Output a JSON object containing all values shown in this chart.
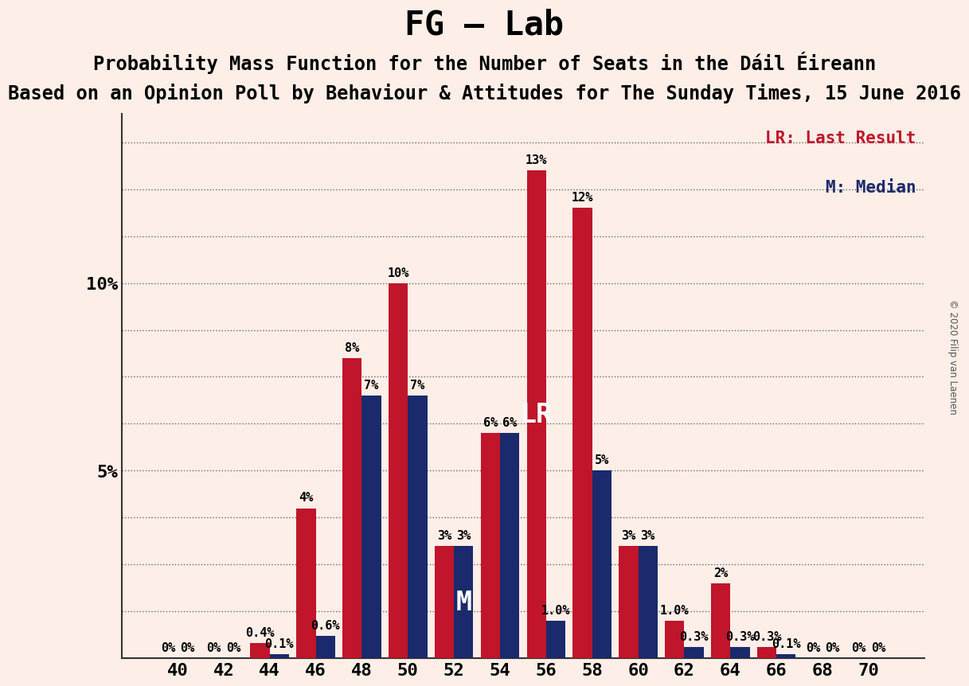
{
  "title": "FG – Lab",
  "subtitle1": "Probability Mass Function for the Number of Seats in the Dáil Éireann",
  "subtitle2": "Based on an Opinion Poll by Behaviour & Attitudes for The Sunday Times, 15 June 2016",
  "copyright": "© 2020 Filip van Laenen",
  "seats": [
    40,
    42,
    44,
    46,
    48,
    50,
    52,
    54,
    56,
    58,
    60,
    62,
    64,
    66,
    68,
    70
  ],
  "navy_values": [
    0.0,
    0.0,
    0.1,
    0.6,
    7.0,
    7.0,
    3.0,
    6.0,
    1.0,
    5.0,
    3.0,
    0.3,
    0.3,
    0.1,
    0.0,
    0.0
  ],
  "red_values": [
    0.0,
    0.0,
    0.4,
    4.0,
    8.0,
    10.0,
    3.0,
    6.0,
    13.0,
    12.0,
    3.0,
    1.0,
    2.0,
    0.3,
    0.0,
    0.0
  ],
  "navy_labels": [
    "0%",
    "0%",
    "0.1%",
    "0.6%",
    "7%",
    "7%",
    "3%",
    "6%",
    "1.0%",
    "5%",
    "3%",
    "0.3%",
    "0.3%",
    "0.1%",
    "0%",
    "0%"
  ],
  "red_labels": [
    "0%",
    "0%",
    "0.4%",
    "4%",
    "8%",
    "10%",
    "3%",
    "6%",
    "13%",
    "12%",
    "3%",
    "1.0%",
    "2%",
    "0.3%",
    "0%",
    "0%"
  ],
  "navy_color": "#1a2a6c",
  "red_color": "#c0152a",
  "background_color": "#fdeee8",
  "median_seat": 52,
  "lr_seat": 56,
  "ylim": [
    0,
    14.5
  ],
  "ytick_positions": [
    0,
    1.25,
    2.5,
    3.75,
    5.0,
    6.25,
    7.5,
    8.75,
    10.0,
    11.25,
    12.5,
    13.75
  ],
  "ytick_labels": [
    "",
    "",
    "",
    "",
    "5%",
    "",
    "",
    "",
    "10%",
    "",
    "",
    ""
  ],
  "bar_width": 0.42,
  "title_fontsize": 30,
  "subtitle1_fontsize": 17,
  "subtitle2_fontsize": 17,
  "label_fontsize": 11,
  "tick_fontsize": 16
}
